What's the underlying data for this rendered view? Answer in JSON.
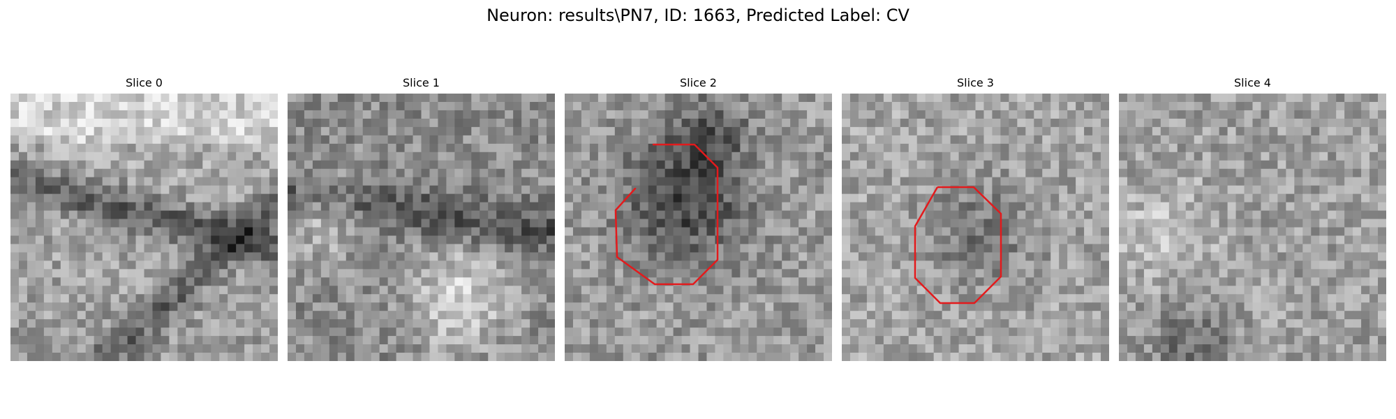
{
  "figure": {
    "title": "Neuron: results\\PN7, ID: 1663, Predicted Label: CV"
  },
  "panels": [
    {
      "title": "Slice 0",
      "has_outline": false,
      "tone": "gradient-dark-diagonal"
    },
    {
      "title": "Slice 1",
      "has_outline": false,
      "tone": "dark-band-bright-bottom"
    },
    {
      "title": "Slice 2",
      "has_outline": true,
      "tone": "dark-center-blob"
    },
    {
      "title": "Slice 3",
      "has_outline": true,
      "tone": "mid-gray-faint-blob"
    },
    {
      "title": "Slice 4",
      "has_outline": false,
      "tone": "noisy-uniform"
    }
  ],
  "colors": {
    "outline": "#e31a1c",
    "background": "#ffffff"
  }
}
